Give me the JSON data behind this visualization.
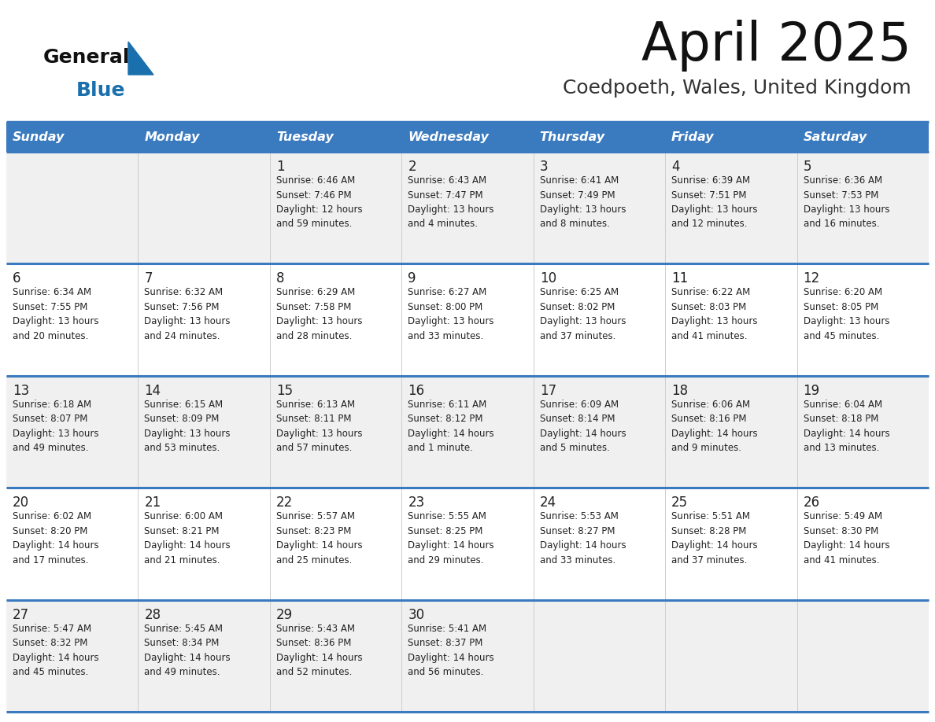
{
  "title": "April 2025",
  "subtitle": "Coedpoeth, Wales, United Kingdom",
  "header_bg": "#3a7abf",
  "header_text_color": "#ffffff",
  "day_names": [
    "Sunday",
    "Monday",
    "Tuesday",
    "Wednesday",
    "Thursday",
    "Friday",
    "Saturday"
  ],
  "row_bg_odd": "#f0f0f0",
  "row_bg_even": "#ffffff",
  "cell_text_color": "#222222",
  "divider_color": "#3a7abf",
  "logo_color": "#1a6fad",
  "calendar": [
    [
      {
        "day": "",
        "info": ""
      },
      {
        "day": "",
        "info": ""
      },
      {
        "day": "1",
        "info": "Sunrise: 6:46 AM\nSunset: 7:46 PM\nDaylight: 12 hours\nand 59 minutes."
      },
      {
        "day": "2",
        "info": "Sunrise: 6:43 AM\nSunset: 7:47 PM\nDaylight: 13 hours\nand 4 minutes."
      },
      {
        "day": "3",
        "info": "Sunrise: 6:41 AM\nSunset: 7:49 PM\nDaylight: 13 hours\nand 8 minutes."
      },
      {
        "day": "4",
        "info": "Sunrise: 6:39 AM\nSunset: 7:51 PM\nDaylight: 13 hours\nand 12 minutes."
      },
      {
        "day": "5",
        "info": "Sunrise: 6:36 AM\nSunset: 7:53 PM\nDaylight: 13 hours\nand 16 minutes."
      }
    ],
    [
      {
        "day": "6",
        "info": "Sunrise: 6:34 AM\nSunset: 7:55 PM\nDaylight: 13 hours\nand 20 minutes."
      },
      {
        "day": "7",
        "info": "Sunrise: 6:32 AM\nSunset: 7:56 PM\nDaylight: 13 hours\nand 24 minutes."
      },
      {
        "day": "8",
        "info": "Sunrise: 6:29 AM\nSunset: 7:58 PM\nDaylight: 13 hours\nand 28 minutes."
      },
      {
        "day": "9",
        "info": "Sunrise: 6:27 AM\nSunset: 8:00 PM\nDaylight: 13 hours\nand 33 minutes."
      },
      {
        "day": "10",
        "info": "Sunrise: 6:25 AM\nSunset: 8:02 PM\nDaylight: 13 hours\nand 37 minutes."
      },
      {
        "day": "11",
        "info": "Sunrise: 6:22 AM\nSunset: 8:03 PM\nDaylight: 13 hours\nand 41 minutes."
      },
      {
        "day": "12",
        "info": "Sunrise: 6:20 AM\nSunset: 8:05 PM\nDaylight: 13 hours\nand 45 minutes."
      }
    ],
    [
      {
        "day": "13",
        "info": "Sunrise: 6:18 AM\nSunset: 8:07 PM\nDaylight: 13 hours\nand 49 minutes."
      },
      {
        "day": "14",
        "info": "Sunrise: 6:15 AM\nSunset: 8:09 PM\nDaylight: 13 hours\nand 53 minutes."
      },
      {
        "day": "15",
        "info": "Sunrise: 6:13 AM\nSunset: 8:11 PM\nDaylight: 13 hours\nand 57 minutes."
      },
      {
        "day": "16",
        "info": "Sunrise: 6:11 AM\nSunset: 8:12 PM\nDaylight: 14 hours\nand 1 minute."
      },
      {
        "day": "17",
        "info": "Sunrise: 6:09 AM\nSunset: 8:14 PM\nDaylight: 14 hours\nand 5 minutes."
      },
      {
        "day": "18",
        "info": "Sunrise: 6:06 AM\nSunset: 8:16 PM\nDaylight: 14 hours\nand 9 minutes."
      },
      {
        "day": "19",
        "info": "Sunrise: 6:04 AM\nSunset: 8:18 PM\nDaylight: 14 hours\nand 13 minutes."
      }
    ],
    [
      {
        "day": "20",
        "info": "Sunrise: 6:02 AM\nSunset: 8:20 PM\nDaylight: 14 hours\nand 17 minutes."
      },
      {
        "day": "21",
        "info": "Sunrise: 6:00 AM\nSunset: 8:21 PM\nDaylight: 14 hours\nand 21 minutes."
      },
      {
        "day": "22",
        "info": "Sunrise: 5:57 AM\nSunset: 8:23 PM\nDaylight: 14 hours\nand 25 minutes."
      },
      {
        "day": "23",
        "info": "Sunrise: 5:55 AM\nSunset: 8:25 PM\nDaylight: 14 hours\nand 29 minutes."
      },
      {
        "day": "24",
        "info": "Sunrise: 5:53 AM\nSunset: 8:27 PM\nDaylight: 14 hours\nand 33 minutes."
      },
      {
        "day": "25",
        "info": "Sunrise: 5:51 AM\nSunset: 8:28 PM\nDaylight: 14 hours\nand 37 minutes."
      },
      {
        "day": "26",
        "info": "Sunrise: 5:49 AM\nSunset: 8:30 PM\nDaylight: 14 hours\nand 41 minutes."
      }
    ],
    [
      {
        "day": "27",
        "info": "Sunrise: 5:47 AM\nSunset: 8:32 PM\nDaylight: 14 hours\nand 45 minutes."
      },
      {
        "day": "28",
        "info": "Sunrise: 5:45 AM\nSunset: 8:34 PM\nDaylight: 14 hours\nand 49 minutes."
      },
      {
        "day": "29",
        "info": "Sunrise: 5:43 AM\nSunset: 8:36 PM\nDaylight: 14 hours\nand 52 minutes."
      },
      {
        "day": "30",
        "info": "Sunrise: 5:41 AM\nSunset: 8:37 PM\nDaylight: 14 hours\nand 56 minutes."
      },
      {
        "day": "",
        "info": ""
      },
      {
        "day": "",
        "info": ""
      },
      {
        "day": "",
        "info": ""
      }
    ]
  ]
}
